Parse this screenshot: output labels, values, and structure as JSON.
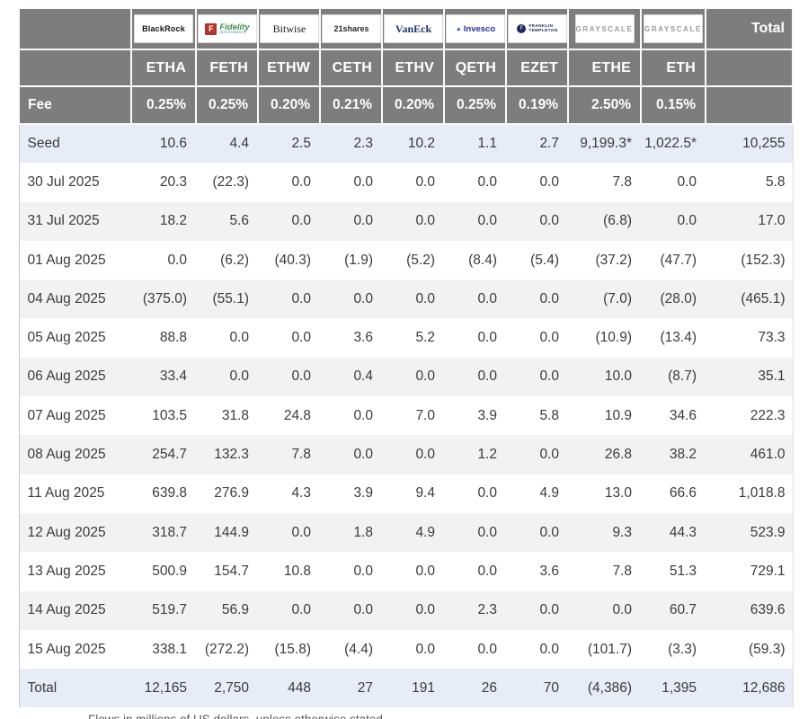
{
  "colors": {
    "header_bg": "#7d7d7d",
    "highlight_row_bg": "#e8ecf7",
    "alt_row_bg": "#f2f2f3",
    "negative_text": "#f0524f",
    "body_text": "#3b3b3c",
    "header_text": "#ffffff"
  },
  "header": {
    "fee_label": "Fee",
    "total_label": "Total"
  },
  "logos": {
    "blackrock": {
      "text": "BlackRock"
    },
    "fidelity": {
      "icon": "F",
      "name": "Fidelity",
      "sub": "INVESTMENTS"
    },
    "bitwise": {
      "text": "Bitwise"
    },
    "shares21": {
      "text": "21shares"
    },
    "vaneck": {
      "text": "VanEck"
    },
    "invesco": {
      "triangle": "▲",
      "text": "Invesco"
    },
    "franklin": {
      "icon": "F",
      "line1": "FRANKLIN",
      "line2": "TEMPLETON"
    },
    "grayscale": {
      "text": "GRAYSCALE"
    }
  },
  "footnote": "Flows in millions of US dollars, unless otherwise stated",
  "chart_data": {
    "type": "table",
    "issuers": [
      "BlackRock",
      "Fidelity",
      "Bitwise",
      "21shares",
      "VanEck",
      "Invesco",
      "Franklin Templeton",
      "Grayscale",
      "Grayscale"
    ],
    "logo_ids": [
      "blackrock",
      "fidelity",
      "bitwise",
      "shares21",
      "vaneck",
      "invesco",
      "franklin",
      "grayscale",
      "grayscale"
    ],
    "tickers": [
      "ETHA",
      "FETH",
      "ETHW",
      "CETH",
      "ETHV",
      "QETH",
      "EZET",
      "ETHE",
      "ETH"
    ],
    "fees": [
      "0.25%",
      "0.25%",
      "0.20%",
      "0.21%",
      "0.20%",
      "0.25%",
      "0.19%",
      "2.50%",
      "0.15%"
    ],
    "rows": [
      {
        "label": "Seed",
        "values": [
          "10.6",
          "4.4",
          "2.5",
          "2.3",
          "10.2",
          "1.1",
          "2.7",
          "9,199.3*",
          "1,022.5*"
        ],
        "total": "10,255",
        "highlight": true
      },
      {
        "label": "30 Jul 2025",
        "values": [
          "20.3",
          "(22.3)",
          "0.0",
          "0.0",
          "0.0",
          "0.0",
          "0.0",
          "7.8",
          "0.0"
        ],
        "total": "5.8",
        "highlight": false
      },
      {
        "label": "31 Jul 2025",
        "values": [
          "18.2",
          "5.6",
          "0.0",
          "0.0",
          "0.0",
          "0.0",
          "0.0",
          "(6.8)",
          "0.0"
        ],
        "total": "17.0",
        "highlight": false
      },
      {
        "label": "01 Aug 2025",
        "values": [
          "0.0",
          "(6.2)",
          "(40.3)",
          "(1.9)",
          "(5.2)",
          "(8.4)",
          "(5.4)",
          "(37.2)",
          "(47.7)"
        ],
        "total": "(152.3)",
        "highlight": false
      },
      {
        "label": "04 Aug 2025",
        "values": [
          "(375.0)",
          "(55.1)",
          "0.0",
          "0.0",
          "0.0",
          "0.0",
          "0.0",
          "(7.0)",
          "(28.0)"
        ],
        "total": "(465.1)",
        "highlight": false
      },
      {
        "label": "05 Aug 2025",
        "values": [
          "88.8",
          "0.0",
          "0.0",
          "3.6",
          "5.2",
          "0.0",
          "0.0",
          "(10.9)",
          "(13.4)"
        ],
        "total": "73.3",
        "highlight": false
      },
      {
        "label": "06 Aug 2025",
        "values": [
          "33.4",
          "0.0",
          "0.0",
          "0.4",
          "0.0",
          "0.0",
          "0.0",
          "10.0",
          "(8.7)"
        ],
        "total": "35.1",
        "highlight": false
      },
      {
        "label": "07 Aug 2025",
        "values": [
          "103.5",
          "31.8",
          "24.8",
          "0.0",
          "7.0",
          "3.9",
          "5.8",
          "10.9",
          "34.6"
        ],
        "total": "222.3",
        "highlight": false
      },
      {
        "label": "08 Aug 2025",
        "values": [
          "254.7",
          "132.3",
          "7.8",
          "0.0",
          "0.0",
          "1.2",
          "0.0",
          "26.8",
          "38.2"
        ],
        "total": "461.0",
        "highlight": false
      },
      {
        "label": "11 Aug 2025",
        "values": [
          "639.8",
          "276.9",
          "4.3",
          "3.9",
          "9.4",
          "0.0",
          "4.9",
          "13.0",
          "66.6"
        ],
        "total": "1,018.8",
        "highlight": false
      },
      {
        "label": "12 Aug 2025",
        "values": [
          "318.7",
          "144.9",
          "0.0",
          "1.8",
          "4.9",
          "0.0",
          "0.0",
          "9.3",
          "44.3"
        ],
        "total": "523.9",
        "highlight": false
      },
      {
        "label": "13 Aug 2025",
        "values": [
          "500.9",
          "154.7",
          "10.8",
          "0.0",
          "0.0",
          "0.0",
          "3.6",
          "7.8",
          "51.3"
        ],
        "total": "729.1",
        "highlight": false
      },
      {
        "label": "14 Aug 2025",
        "values": [
          "519.7",
          "56.9",
          "0.0",
          "0.0",
          "0.0",
          "2.3",
          "0.0",
          "0.0",
          "60.7"
        ],
        "total": "639.6",
        "highlight": false
      },
      {
        "label": "15 Aug 2025",
        "values": [
          "338.1",
          "(272.2)",
          "(15.8)",
          "(4.4)",
          "0.0",
          "0.0",
          "0.0",
          "(101.7)",
          "(3.3)"
        ],
        "total": "(59.3)",
        "highlight": false
      },
      {
        "label": "Total",
        "values": [
          "12,165",
          "2,750",
          "448",
          "27",
          "191",
          "26",
          "70",
          "(4,386)",
          "1,395"
        ],
        "total": "12,686",
        "highlight": true
      }
    ]
  }
}
